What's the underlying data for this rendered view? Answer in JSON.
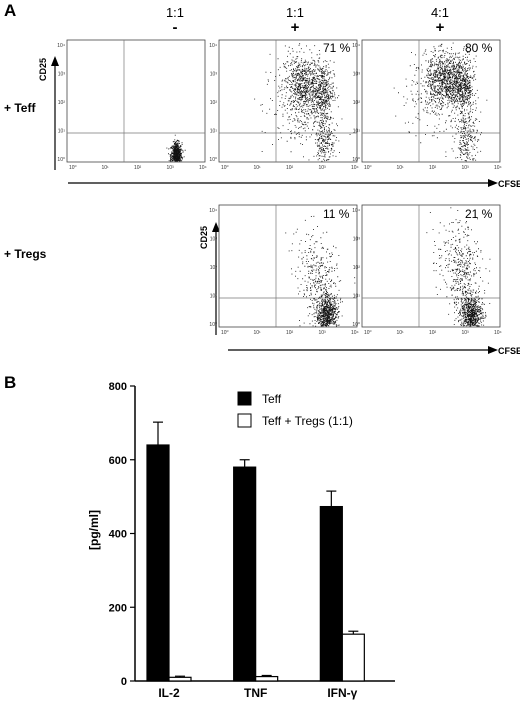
{
  "panels": {
    "a": "A",
    "b": "B"
  },
  "column_headers": [
    {
      "ratio": "1:1",
      "sign": "-"
    },
    {
      "ratio": "1:1",
      "sign": "+"
    },
    {
      "ratio": "4:1",
      "sign": "+"
    }
  ],
  "row_labels": {
    "teff": "+ Teff",
    "tregs": "+ Tregs"
  },
  "flow": {
    "x_axis_label": "CFSE",
    "y_axis_label": "CD25",
    "log_ticks": [
      "10⁰",
      "10¹",
      "10²",
      "10³",
      "10⁴"
    ],
    "plots": [
      {
        "id": "teff-1",
        "percent": "",
        "population": "unstimulated: single low CD25 cluster"
      },
      {
        "id": "teff-2",
        "percent": "71 %",
        "population": "proliferating CD25-high"
      },
      {
        "id": "teff-3",
        "percent": "80 %",
        "population": "proliferating CD25-high"
      },
      {
        "id": "tregs-2",
        "percent": "11 %",
        "population": "suppressed, mostly CD25-low"
      },
      {
        "id": "tregs-3",
        "percent": "21 %",
        "population": "suppressed, mostly CD25-low"
      }
    ]
  },
  "chart_data": {
    "type": "bar",
    "categories": [
      "IL-2",
      "TNF",
      "IFN-γ"
    ],
    "series": [
      {
        "name": "Teff",
        "values": [
          640,
          580,
          473
        ],
        "errors": [
          62,
          20,
          42
        ],
        "color": "#000000"
      },
      {
        "name": "Teff + Tregs (1:1)",
        "values": [
          10,
          12,
          127
        ],
        "errors": [
          3,
          3,
          8
        ],
        "color": "#ffffff"
      }
    ],
    "ylabel": "[pg/ml]",
    "ylim": [
      0,
      800
    ],
    "yticks": [
      0,
      200,
      400,
      600,
      800
    ],
    "legend_position": "top-right",
    "grid": false
  }
}
